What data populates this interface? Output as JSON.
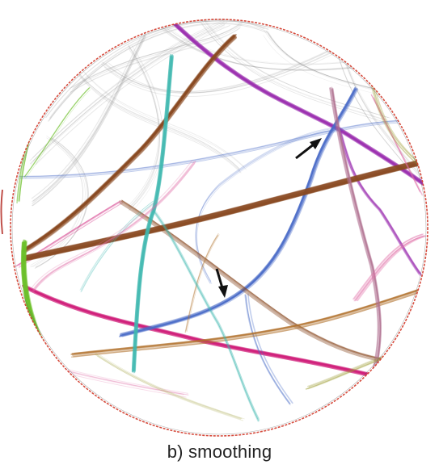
{
  "figure": {
    "caption": "b) smoothing",
    "background": "#ffffff",
    "circle_color": "#d23a2a",
    "arrow_color": "#111111",
    "bundle_colors": {
      "purple": "#9b2fb0",
      "blue": "#4a6cc8",
      "brown": "#8a4a22",
      "orange_brown": "#b0702a",
      "teal": "#3fb8b0",
      "magenta": "#d0207a",
      "pink": "#e070a8",
      "green": "#6cc02a",
      "gray": "#8a8a8a",
      "olive": "#9a9a30",
      "mauve": "#b07090"
    },
    "icons": [
      "arrow-icon-upper",
      "arrow-icon-lower"
    ]
  }
}
